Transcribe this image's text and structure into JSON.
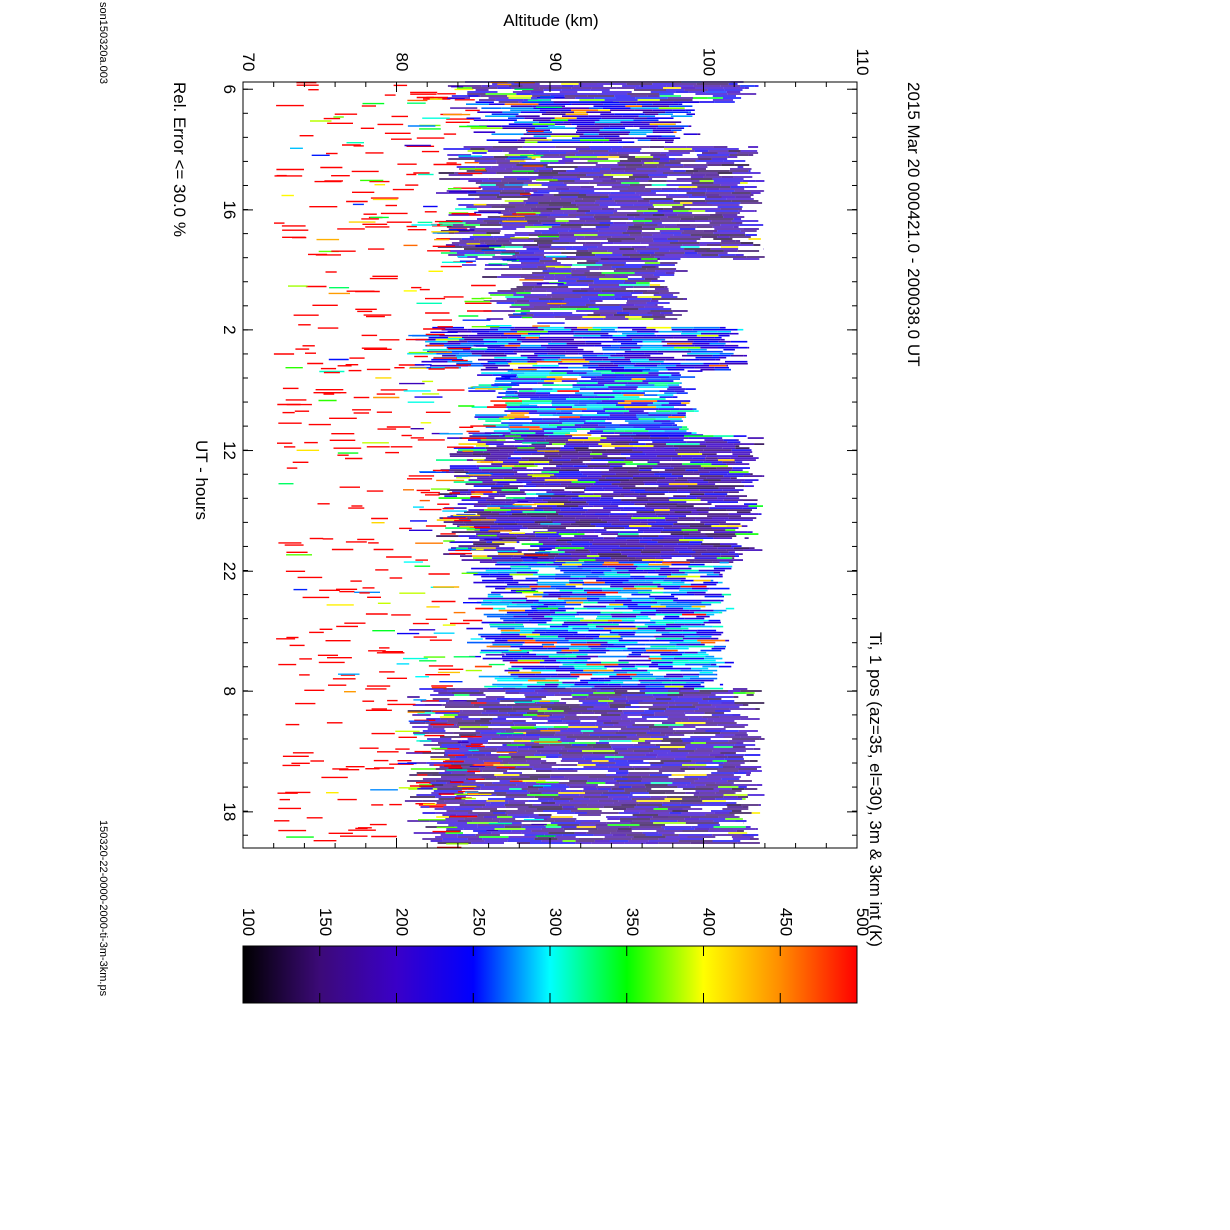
{
  "chart_data": {
    "type": "heatmap",
    "title": "2015 Mar 20    000421.0 - 200038.0 UT",
    "subtitle": "Ti, 1 pos (az=35, el=30), 3m & 3km int (K)",
    "xlabel": "UT - hours",
    "ylabel": "Altitude (km)",
    "annotation": "Rel. Error <= 30.0 %",
    "file_left": "son150320a.003",
    "file_right": "150320-22-0000-2000-ti-3m-3km.ps",
    "x_tick_labels": [
      "6",
      "16",
      "2",
      "12",
      "22",
      "8",
      "18"
    ],
    "x_tick_positions_hours": [
      0.1,
      1.77,
      3.43,
      5.1,
      6.77,
      8.43,
      10.1
    ],
    "xlim_hours": [
      0,
      10.6
    ],
    "ylim": [
      70,
      110
    ],
    "y_ticks": [
      70,
      80,
      90,
      100,
      110
    ],
    "colorbar": {
      "range": [
        100,
        500
      ],
      "ticks": [
        100,
        150,
        200,
        250,
        300,
        350,
        400,
        450,
        500
      ],
      "colors": [
        "#000000",
        "#3c0a78",
        "#3a00c8",
        "#0000ff",
        "#00ffff",
        "#00ff00",
        "#ffff00",
        "#ff8c00",
        "#ff0000"
      ]
    },
    "data_blocks": [
      {
        "t0": 0.0,
        "t1": 0.28,
        "alt0": 84,
        "alt1": 103,
        "temperature": 200
      },
      {
        "t0": 0.28,
        "t1": 0.85,
        "alt0": 86,
        "alt1": 99,
        "temperature": 230
      },
      {
        "t0": 0.9,
        "t1": 2.45,
        "alt0": 84,
        "alt1": 103,
        "temperature": 180
      },
      {
        "t0": 2.45,
        "t1": 3.3,
        "alt0": 87,
        "alt1": 98,
        "temperature": 190
      },
      {
        "t0": 3.4,
        "t1": 4.0,
        "alt0": 82,
        "alt1": 102,
        "temperature": 240
      },
      {
        "t0": 4.0,
        "t1": 4.9,
        "alt0": 86,
        "alt1": 99,
        "temperature": 270
      },
      {
        "t0": 4.9,
        "t1": 6.65,
        "alt0": 84,
        "alt1": 103,
        "temperature": 190
      },
      {
        "t0": 6.65,
        "t1": 8.4,
        "alt0": 86,
        "alt1": 101,
        "temperature": 260
      },
      {
        "t0": 8.4,
        "t1": 10.55,
        "alt0": 82,
        "alt1": 103,
        "temperature": 185
      }
    ],
    "low_altitude_color": "red",
    "grid": false
  }
}
